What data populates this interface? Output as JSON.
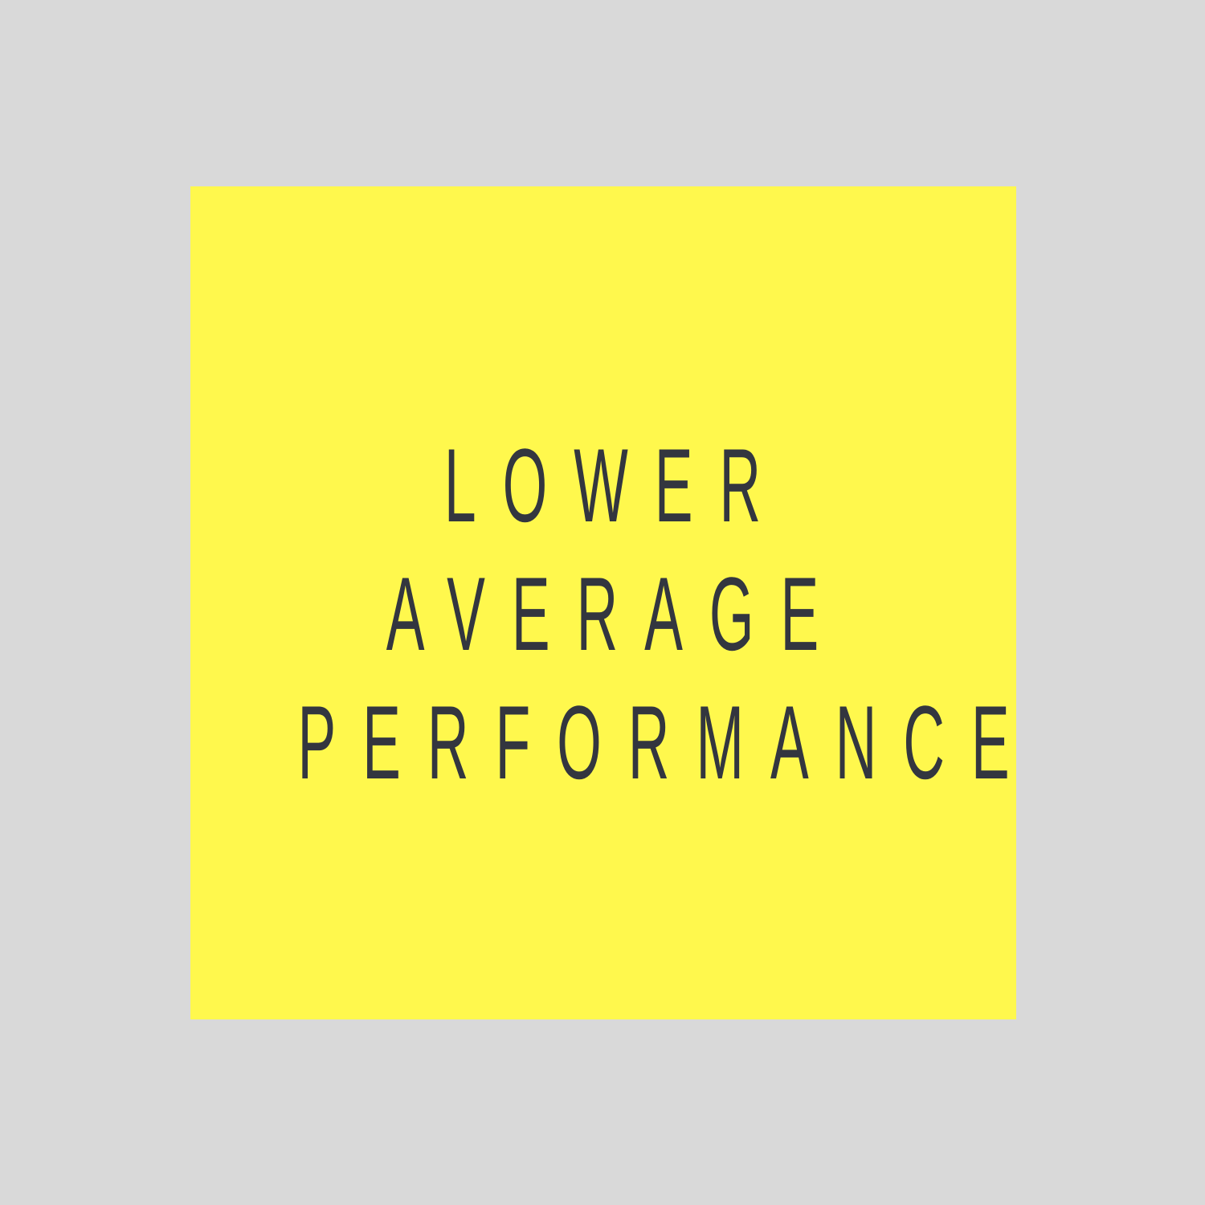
{
  "graphic": {
    "lines": [
      "LOWER",
      "AVERAGE",
      "PERFORMANCE"
    ]
  },
  "colors": {
    "background": "#d9d9d9",
    "card": "#fff84d",
    "text": "#33363f"
  }
}
